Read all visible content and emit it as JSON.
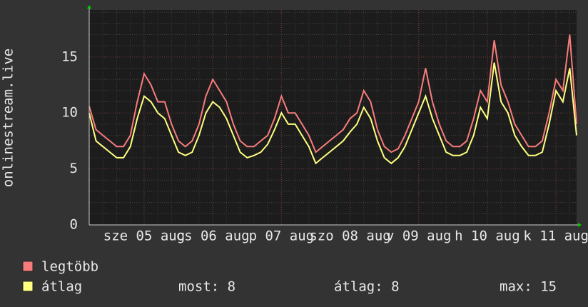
{
  "chart_data": {
    "type": "line",
    "y_label": "onlinestream.live",
    "categories": [
      null,
      null,
      null,
      null,
      null,
      null,
      null,
      null,
      "sze 05 aug",
      null,
      null,
      null,
      null,
      null,
      null,
      null,
      null,
      null,
      "cs 06 aug",
      null,
      null,
      null,
      null,
      null,
      null,
      null,
      null,
      null,
      "p 07 aug",
      null,
      null,
      null,
      null,
      null,
      null,
      null,
      null,
      null,
      "szo 08 aug",
      null,
      null,
      null,
      null,
      null,
      null,
      null,
      null,
      null,
      "v 09 aug",
      null,
      null,
      null,
      null,
      null,
      null,
      null,
      null,
      null,
      "h 10 aug",
      null,
      null,
      null,
      null,
      null,
      null,
      null,
      null,
      null,
      "k 11 aug",
      null,
      null,
      null
    ],
    "series": [
      {
        "name": "legtöbb",
        "color": "#f87c7c",
        "values": [
          10.6,
          8.5,
          8,
          7.5,
          7,
          7,
          8,
          11,
          13.5,
          12.5,
          11,
          11,
          9,
          7.5,
          7,
          7.5,
          9,
          11.5,
          13,
          12,
          11,
          9,
          7.5,
          7,
          7,
          7.5,
          8,
          9.5,
          11.5,
          10,
          10,
          9,
          8,
          6.5,
          7,
          7.5,
          8,
          8.5,
          9.5,
          10,
          12,
          11,
          8.5,
          7,
          6.5,
          6.8,
          8,
          9.5,
          11,
          14,
          11,
          9,
          7.5,
          7,
          7,
          7.5,
          9.5,
          12,
          11,
          16.5,
          12.5,
          11,
          9,
          8,
          7,
          7,
          7.5,
          10,
          13,
          12,
          17,
          9
        ]
      },
      {
        "name": "átlag",
        "color": "#ffff80",
        "values": [
          10,
          7.5,
          7,
          6.5,
          6,
          6,
          7,
          9.5,
          11.5,
          11,
          10,
          9.5,
          8,
          6.5,
          6.2,
          6.5,
          8,
          10,
          11,
          10.5,
          9.5,
          8,
          6.5,
          6,
          6.2,
          6.5,
          7.2,
          8.5,
          10,
          9,
          9,
          8,
          7,
          5.5,
          6,
          6.5,
          7,
          7.5,
          8.3,
          9,
          10.5,
          9.5,
          7.5,
          6,
          5.5,
          6,
          7,
          8.5,
          10,
          11.5,
          9.5,
          8,
          6.5,
          6.2,
          6.2,
          6.5,
          8,
          10.5,
          9.5,
          14.5,
          11,
          10,
          8,
          7,
          6.2,
          6.2,
          6.5,
          9,
          12,
          11,
          14,
          8
        ]
      }
    ],
    "ylim": [
      0,
      19.2
    ],
    "yticks": [
      0,
      5,
      10,
      15
    ],
    "minor_yticks": [
      1,
      2,
      3,
      4,
      6,
      7,
      8,
      9,
      11,
      12,
      13,
      14,
      16,
      17,
      18,
      19
    ],
    "grid": true,
    "stats": [
      "most: 8",
      "átlag: 8",
      "max: 15"
    ]
  }
}
